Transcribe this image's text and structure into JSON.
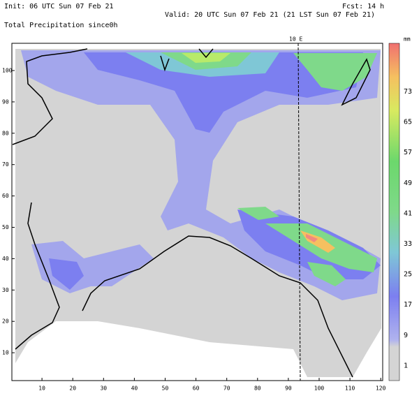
{
  "header": {
    "init": "Init: 06 UTC Sun 07 Feb 21",
    "forecast": "Fcst: 14 h",
    "valid": "Valid: 20 UTC Sun 07 Feb 21 (21 LST Sun 07 Feb 21)",
    "field": "Total Precipitation since0h"
  },
  "map": {
    "meridian_label": "10 E",
    "x_ticks": [
      10,
      20,
      30,
      40,
      50,
      60,
      70,
      80,
      90,
      100,
      110,
      120
    ],
    "y_ticks": [
      10,
      20,
      30,
      40,
      50,
      60,
      70,
      80,
      90,
      100
    ]
  },
  "colorbar": {
    "unit": "mm",
    "labels": [
      73,
      65,
      57,
      49,
      41,
      33,
      25,
      17,
      9,
      1
    ]
  }
}
